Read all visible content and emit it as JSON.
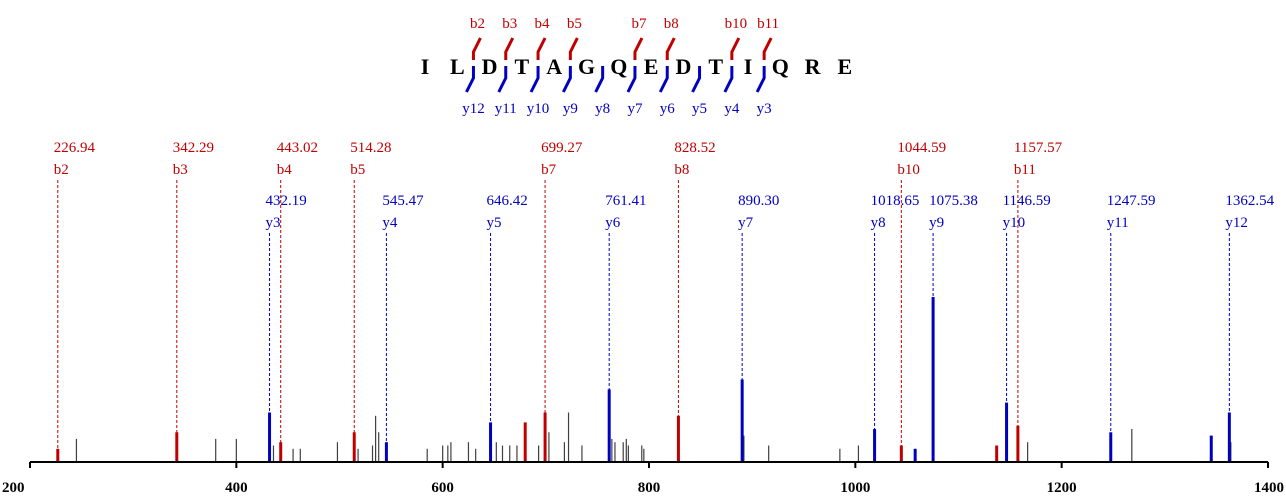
{
  "chart_data": {
    "type": "bar",
    "title": "",
    "xlabel": "",
    "ylabel": "",
    "xlim": [
      200,
      1400
    ],
    "ylim": [
      0,
      100
    ],
    "grid": false,
    "x_ticks": [
      "200",
      "400",
      "600",
      "800",
      "1000",
      "1200",
      "1400"
    ],
    "colors": {
      "b_ion": "#c00000",
      "y_ion": "#0000c0",
      "unmatched": "#404040",
      "axis": "#000000"
    },
    "sequence": [
      "I",
      "L",
      "D",
      "T",
      "A",
      "G",
      "Q",
      "E",
      "D",
      "T",
      "I",
      "Q",
      "R",
      "E"
    ],
    "b_ions_on_sequence": [
      "b2",
      "b3",
      "b4",
      "b5",
      "b7",
      "b8",
      "b10",
      "b11"
    ],
    "y_ions_on_sequence": [
      "y12",
      "y11",
      "y10",
      "y9",
      "y8",
      "y7",
      "y6",
      "y5",
      "y4",
      "y3"
    ],
    "b_ions": [
      {
        "label": "b2",
        "mz": 226.94,
        "mz_text": "226.94",
        "intensity": 4
      },
      {
        "label": "b3",
        "mz": 342.29,
        "mz_text": "342.29",
        "intensity": 9
      },
      {
        "label": "b4",
        "mz": 443.02,
        "mz_text": "443.02",
        "intensity": 6
      },
      {
        "label": "b5",
        "mz": 514.28,
        "mz_text": "514.28",
        "intensity": 9
      },
      {
        "label": "b7",
        "mz": 699.27,
        "mz_text": "699.27",
        "intensity": 15
      },
      {
        "label": "b8",
        "mz": 828.52,
        "mz_text": "828.52",
        "intensity": 14
      },
      {
        "label": "b10",
        "mz": 1044.59,
        "mz_text": "1044.59",
        "intensity": 5
      },
      {
        "label": "b11",
        "mz": 1157.57,
        "mz_text": "1157.57",
        "intensity": 11
      }
    ],
    "y_ions": [
      {
        "label": "y3",
        "mz": 432.19,
        "mz_text": "432.19",
        "intensity": 15
      },
      {
        "label": "y4",
        "mz": 545.47,
        "mz_text": "545.47",
        "intensity": 6
      },
      {
        "label": "y5",
        "mz": 646.42,
        "mz_text": "646.42",
        "intensity": 12
      },
      {
        "label": "y6",
        "mz": 761.41,
        "mz_text": "761.41",
        "intensity": 22
      },
      {
        "label": "y7",
        "mz": 890.3,
        "mz_text": "890.30",
        "intensity": 25
      },
      {
        "label": "y8",
        "mz": 1018.65,
        "mz_text": "1018.65",
        "intensity": 10
      },
      {
        "label": "y9",
        "mz": 1075.38,
        "mz_text": "1075.38",
        "intensity": 50
      },
      {
        "label": "y10",
        "mz": 1146.59,
        "mz_text": "1146.59",
        "intensity": 18
      },
      {
        "label": "y11",
        "mz": 1247.59,
        "mz_text": "1247.59",
        "intensity": 9
      },
      {
        "label": "y12",
        "mz": 1362.54,
        "mz_text": "1362.54",
        "intensity": 15
      }
    ],
    "extra_colored_peaks": [
      {
        "ion": "b",
        "mz": 680,
        "intensity": 12
      },
      {
        "ion": "b",
        "mz": 1137,
        "intensity": 5
      },
      {
        "ion": "y",
        "mz": 1058,
        "intensity": 4
      },
      {
        "ion": "y",
        "mz": 1345,
        "intensity": 8
      }
    ],
    "unmatched_peaks": [
      {
        "mz": 245,
        "intensity": 7
      },
      {
        "mz": 380,
        "intensity": 7
      },
      {
        "mz": 400,
        "intensity": 7
      },
      {
        "mz": 436,
        "intensity": 5
      },
      {
        "mz": 455,
        "intensity": 4
      },
      {
        "mz": 462,
        "intensity": 4
      },
      {
        "mz": 498,
        "intensity": 6
      },
      {
        "mz": 518,
        "intensity": 4
      },
      {
        "mz": 532,
        "intensity": 5
      },
      {
        "mz": 535,
        "intensity": 14
      },
      {
        "mz": 538,
        "intensity": 9
      },
      {
        "mz": 585,
        "intensity": 4
      },
      {
        "mz": 600,
        "intensity": 5
      },
      {
        "mz": 605,
        "intensity": 5
      },
      {
        "mz": 608,
        "intensity": 6
      },
      {
        "mz": 625,
        "intensity": 6
      },
      {
        "mz": 632,
        "intensity": 4
      },
      {
        "mz": 652,
        "intensity": 6
      },
      {
        "mz": 658,
        "intensity": 5
      },
      {
        "mz": 665,
        "intensity": 5
      },
      {
        "mz": 672,
        "intensity": 5
      },
      {
        "mz": 693,
        "intensity": 5
      },
      {
        "mz": 703,
        "intensity": 9
      },
      {
        "mz": 718,
        "intensity": 6
      },
      {
        "mz": 722,
        "intensity": 15
      },
      {
        "mz": 735,
        "intensity": 5
      },
      {
        "mz": 764,
        "intensity": 7
      },
      {
        "mz": 767,
        "intensity": 6
      },
      {
        "mz": 775,
        "intensity": 6
      },
      {
        "mz": 778,
        "intensity": 7
      },
      {
        "mz": 780,
        "intensity": 5
      },
      {
        "mz": 793,
        "intensity": 5
      },
      {
        "mz": 795,
        "intensity": 4
      },
      {
        "mz": 892,
        "intensity": 8
      },
      {
        "mz": 916,
        "intensity": 5
      },
      {
        "mz": 985,
        "intensity": 4
      },
      {
        "mz": 1003,
        "intensity": 5
      },
      {
        "mz": 1076,
        "intensity": 30
      },
      {
        "mz": 1167,
        "intensity": 6
      },
      {
        "mz": 1268,
        "intensity": 10
      },
      {
        "mz": 1364,
        "intensity": 6
      }
    ]
  }
}
